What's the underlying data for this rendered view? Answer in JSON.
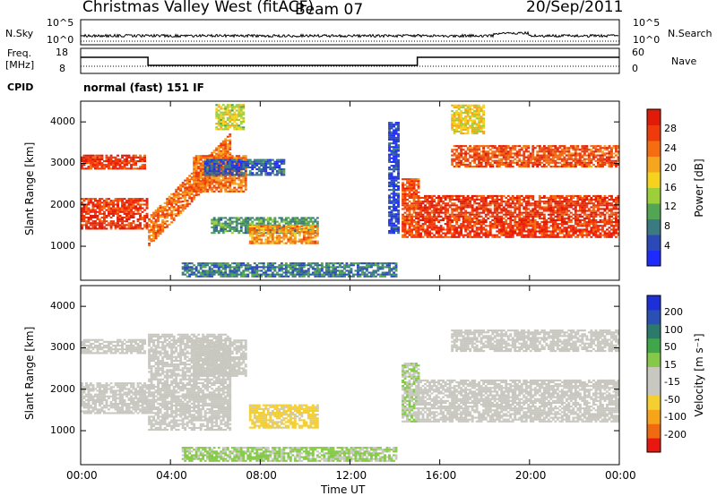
{
  "header": {
    "radar_title": "Christmas Valley West (fitACF)",
    "beam_label": "Beam 07",
    "date": "20/Sep/2011"
  },
  "strip_labels": {
    "nsky": "N.Sky",
    "nsearch": "N.Search",
    "freq_line1": "Freq.",
    "freq_line2": "[MHz]",
    "nave": "Nave",
    "cpid": "CPID",
    "cpid_value": "normal (fast) 151 IF",
    "noise_ticks_left": [
      "10^5",
      "10^0"
    ],
    "noise_ticks_right": [
      "10^5",
      "10^0"
    ],
    "freq_ticks": [
      "18",
      "8"
    ],
    "nave_ticks": [
      "60",
      "0"
    ]
  },
  "colors": {
    "power_scale": [
      "#1e2bff",
      "#2c49b8",
      "#3c7a82",
      "#52a552",
      "#9ccf3a",
      "#f5d21e",
      "#f5a51e",
      "#f46d10",
      "#ef3a0c",
      "#e11a0a"
    ],
    "velocity_scale": [
      "#e8170f",
      "#f26a10",
      "#f6a51b",
      "#f5cf30",
      "#c8c8c0",
      "#c8c8c0",
      "#86c84a",
      "#3fa64a",
      "#2c7a6c",
      "#2a4fb5",
      "#1d2fd8"
    ],
    "gray": "#c8c8c0"
  },
  "chart_data": [
    {
      "type": "heatmap",
      "panel": "power",
      "xlabel": "",
      "ylabel": "Slant Range [km]",
      "x_range_hours": [
        0,
        24
      ],
      "yticks": [
        "4000",
        "3000",
        "2000",
        "1000"
      ],
      "ylim_km": [
        180,
        4500
      ],
      "colorbar_label": "Power [dB]",
      "colorbar_ticks": [
        "28",
        "24",
        "20",
        "16",
        "12",
        "8",
        "4"
      ],
      "colorbar_range": [
        0,
        32
      ],
      "regions": [
        {
          "t0": 0.0,
          "t1": 2.9,
          "r0": 2850,
          "r1": 3200,
          "value": 28
        },
        {
          "t0": 0.0,
          "t1": 3.0,
          "r0": 1400,
          "r1": 2150,
          "value": 28
        },
        {
          "t0": 3.0,
          "t1": 6.6,
          "r0": 1000,
          "r1": 3300,
          "value": 24,
          "note": "rising band"
        },
        {
          "t0": 5.0,
          "t1": 7.3,
          "r0": 2300,
          "r1": 3200,
          "value": 24
        },
        {
          "t0": 6.0,
          "t1": 7.2,
          "r0": 3800,
          "r1": 4400,
          "value": 16
        },
        {
          "t0": 5.5,
          "t1": 9.0,
          "r0": 2700,
          "r1": 3100,
          "value": 6
        },
        {
          "t0": 5.8,
          "t1": 10.5,
          "r0": 1300,
          "r1": 1700,
          "value": 10
        },
        {
          "t0": 7.5,
          "t1": 10.5,
          "r0": 1050,
          "r1": 1500,
          "value": 22
        },
        {
          "t0": 4.5,
          "t1": 14.0,
          "r0": 250,
          "r1": 600,
          "value": 8
        },
        {
          "t0": 13.7,
          "t1": 14.1,
          "r0": 1300,
          "r1": 4000,
          "value": 4
        },
        {
          "t0": 14.3,
          "t1": 15.0,
          "r0": 1200,
          "r1": 2600,
          "value": 26
        },
        {
          "t0": 15.0,
          "t1": 24.0,
          "r0": 1200,
          "r1": 2200,
          "value": 28
        },
        {
          "t0": 16.5,
          "t1": 24.0,
          "r0": 2900,
          "r1": 3400,
          "value": 26
        },
        {
          "t0": 16.5,
          "t1": 18.0,
          "r0": 3700,
          "r1": 4400,
          "value": 18
        }
      ]
    },
    {
      "type": "heatmap",
      "panel": "velocity",
      "xlabel": "Time UT",
      "ylabel": "Slant Range [km]",
      "x_range_hours": [
        0,
        24
      ],
      "xticks": [
        "00:00",
        "04:00",
        "08:00",
        "12:00",
        "16:00",
        "20:00",
        "00:00"
      ],
      "yticks": [
        "4000",
        "3000",
        "2000",
        "1000"
      ],
      "ylim_km": [
        180,
        4500
      ],
      "colorbar_label": "Velocity [m s⁻¹]",
      "colorbar_ticks": [
        "200",
        "100",
        "50",
        "15",
        "-15",
        "-50",
        "-100",
        "-200"
      ],
      "colorbar_range": [
        -250,
        250
      ],
      "regions": [
        {
          "t0": 0.0,
          "t1": 2.9,
          "r0": 2850,
          "r1": 3200,
          "value": 0
        },
        {
          "t0": 0.0,
          "t1": 3.0,
          "r0": 1400,
          "r1": 2150,
          "value": 0
        },
        {
          "t0": 3.0,
          "t1": 6.6,
          "r0": 1000,
          "r1": 3300,
          "value": -40
        },
        {
          "t0": 5.0,
          "t1": 7.3,
          "r0": 2300,
          "r1": 3200,
          "value": 0
        },
        {
          "t0": 7.5,
          "t1": 10.5,
          "r0": 1050,
          "r1": 1600,
          "value": -80
        },
        {
          "t0": 4.5,
          "t1": 14.0,
          "r0": 250,
          "r1": 600,
          "value": 30
        },
        {
          "t0": 14.3,
          "t1": 15.0,
          "r0": 1200,
          "r1": 2600,
          "value": 20
        },
        {
          "t0": 15.0,
          "t1": 24.0,
          "r0": 1200,
          "r1": 2200,
          "value": 0
        },
        {
          "t0": 16.5,
          "t1": 24.0,
          "r0": 2900,
          "r1": 3400,
          "value": 0
        }
      ]
    }
  ]
}
